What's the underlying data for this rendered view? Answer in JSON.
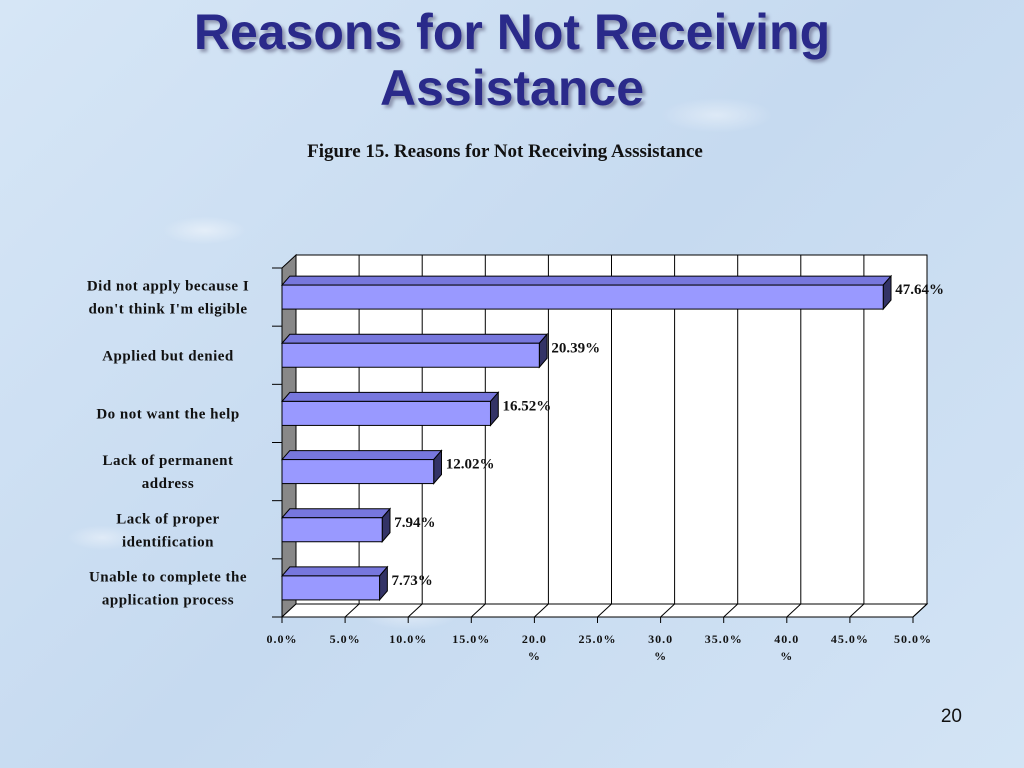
{
  "slide": {
    "title_line1": "Reasons for Not Receiving",
    "title_line2": "Assistance",
    "page_number": "20"
  },
  "chart_data": {
    "type": "bar",
    "orientation": "horizontal",
    "title": "Figure 15. Reasons for Not Receiving Asssistance",
    "categories": [
      [
        "Did not apply because I",
        "don't think I'm eligible"
      ],
      [
        "Applied but denied"
      ],
      [
        "Do not want the help"
      ],
      [
        "Lack of permanent",
        "address"
      ],
      [
        "Lack of proper",
        "identification"
      ],
      [
        "Unable to complete the",
        "application process"
      ]
    ],
    "values": [
      47.64,
      20.39,
      16.52,
      12.02,
      7.94,
      7.73
    ],
    "value_labels": [
      "47.64%",
      "20.39%",
      "16.52%",
      "12.02%",
      "7.94%",
      "7.73%"
    ],
    "xlim": [
      0,
      50
    ],
    "x_ticks": [
      0,
      5,
      10,
      15,
      20,
      25,
      30,
      35,
      40,
      45,
      50
    ],
    "x_tick_labels": [
      [
        "0.0%"
      ],
      [
        "5.0%"
      ],
      [
        "10.0%"
      ],
      [
        "15.0%"
      ],
      [
        "20.0",
        "%"
      ],
      [
        "25.0%"
      ],
      [
        "30.0",
        "%"
      ],
      [
        "35.0%"
      ],
      [
        "40.0",
        "%"
      ],
      [
        "45.0%"
      ],
      [
        "50.0%"
      ]
    ],
    "grid": true,
    "colors": {
      "bar_front": "#9999ff",
      "bar_top": "#7777dd",
      "bar_side": "#333366",
      "wall": "#888888",
      "plot_bg": "#ffffff"
    }
  }
}
